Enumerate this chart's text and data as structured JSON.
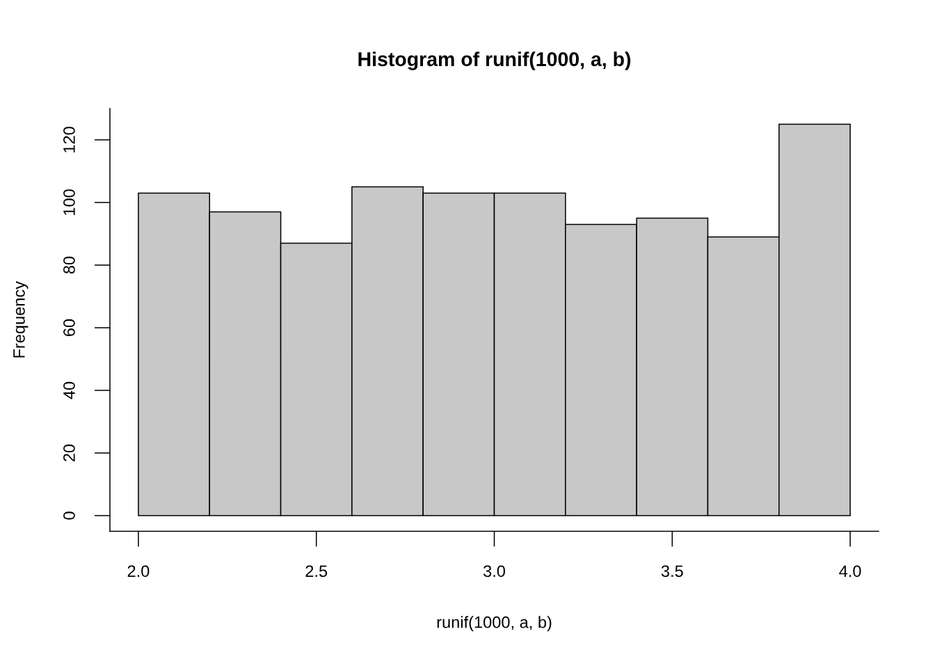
{
  "chart_data": {
    "type": "histogram",
    "title": "Histogram of runif(1000, a, b)",
    "xlabel": "runif(1000, a, b)",
    "ylabel": "Frequency",
    "bins": [
      2.0,
      2.2,
      2.4,
      2.6,
      2.8,
      3.0,
      3.2,
      3.4,
      3.6,
      3.8,
      4.0
    ],
    "values": [
      103,
      97,
      87,
      105,
      103,
      103,
      93,
      95,
      89,
      125
    ],
    "color": "#c8c8c8",
    "xlim": [
      1.92,
      4.08
    ],
    "ylim": [
      -5,
      130
    ],
    "xticks": [
      {
        "value": 2,
        "label": "2.0"
      },
      2.5,
      {
        "value": 3,
        "label": "3.0"
      },
      3.5,
      {
        "value": 4,
        "label": "4.0"
      }
    ],
    "yticks": [
      0,
      20,
      40,
      60,
      80,
      100,
      120
    ]
  }
}
